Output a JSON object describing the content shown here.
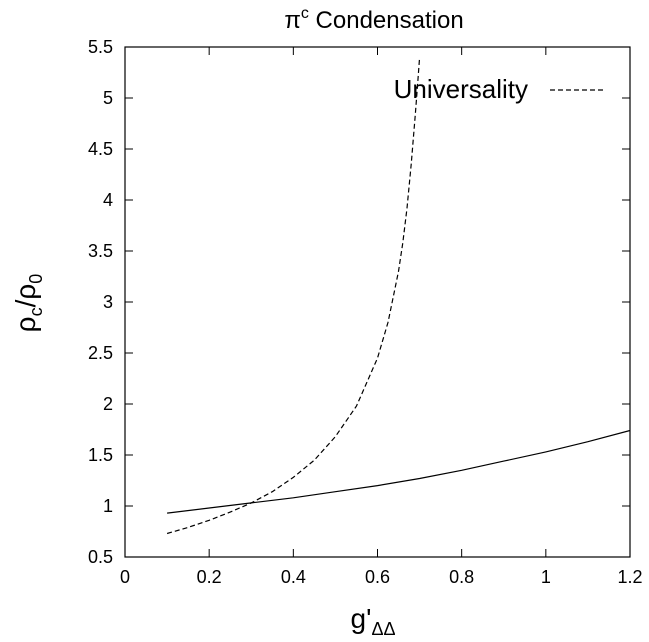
{
  "chart_data": {
    "type": "line",
    "title": {
      "base": "π",
      "sup": "c",
      "rest": " Condensation"
    },
    "xlabel": {
      "base": "g'",
      "sub": "ΔΔ"
    },
    "ylabel": {
      "base": "ρ",
      "sub1": "c",
      "mid": "/ρ",
      "sub2": "0"
    },
    "xlim": [
      0,
      1.2
    ],
    "ylim": [
      0.5,
      5.5
    ],
    "x_ticks": [
      0,
      0.2,
      0.4,
      0.6,
      0.8,
      1,
      1.2
    ],
    "x_tick_labels": [
      "0",
      "0.2",
      "0.4",
      "0.6",
      "0.8",
      "1",
      "1.2"
    ],
    "y_ticks": [
      0.5,
      1,
      1.5,
      2,
      2.5,
      3,
      3.5,
      4,
      4.5,
      5,
      5.5
    ],
    "y_tick_labels": [
      "0.5",
      "1",
      "1.5",
      "2",
      "2.5",
      "3",
      "3.5",
      "4",
      "4.5",
      "5",
      "5.5"
    ],
    "grid": false,
    "legend_position": "top-right",
    "series": [
      {
        "style": "solid",
        "x": [
          0.1,
          0.2,
          0.3,
          0.4,
          0.5,
          0.6,
          0.7,
          0.8,
          0.9,
          1.0,
          1.1,
          1.2
        ],
        "y": [
          0.93,
          0.98,
          1.03,
          1.08,
          1.14,
          1.2,
          1.27,
          1.35,
          1.44,
          1.53,
          1.63,
          1.74
        ]
      },
      {
        "name": "Universality",
        "style": "dashed",
        "x": [
          0.1,
          0.15,
          0.2,
          0.25,
          0.3,
          0.35,
          0.4,
          0.45,
          0.5,
          0.55,
          0.6,
          0.625,
          0.65,
          0.66,
          0.67,
          0.68,
          0.69,
          0.695,
          0.7
        ],
        "y": [
          0.73,
          0.79,
          0.86,
          0.94,
          1.03,
          1.14,
          1.28,
          1.45,
          1.68,
          1.98,
          2.45,
          2.8,
          3.3,
          3.58,
          3.92,
          4.35,
          4.85,
          5.12,
          5.4
        ]
      }
    ]
  }
}
